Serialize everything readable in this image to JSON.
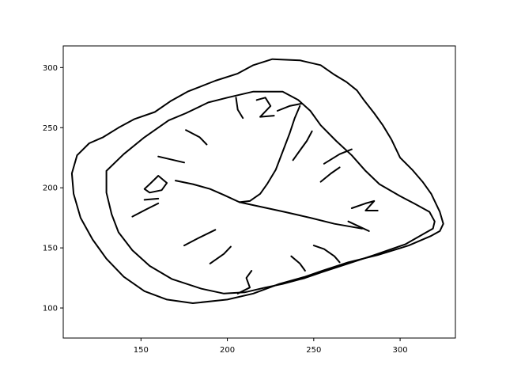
{
  "chart_data": {
    "type": "line",
    "title": "",
    "xlabel": "",
    "ylabel": "",
    "xlim": [
      105,
      332
    ],
    "ylim": [
      75,
      318
    ],
    "x_ticks": [
      150,
      200,
      250,
      300
    ],
    "y_ticks": [
      100,
      150,
      200,
      250,
      300
    ],
    "grid": false,
    "legend": "none",
    "line_color": "#000000",
    "series": [
      {
        "values": [
          [
            113,
            227
          ],
          [
            120,
            237
          ],
          [
            128,
            242
          ],
          [
            137,
            250
          ],
          [
            146,
            257
          ],
          [
            158,
            263
          ],
          [
            167,
            272
          ],
          [
            177,
            280
          ],
          [
            193,
            289
          ],
          [
            206,
            295
          ],
          [
            215,
            302
          ],
          [
            226,
            307
          ],
          [
            242,
            306
          ],
          [
            254,
            302
          ],
          [
            262,
            294
          ],
          [
            269,
            288
          ],
          [
            275,
            281
          ],
          [
            279,
            273
          ],
          [
            285,
            262
          ],
          [
            290,
            252
          ],
          [
            295,
            240
          ],
          [
            300,
            225
          ],
          [
            307,
            215
          ],
          [
            313,
            205
          ],
          [
            318,
            195
          ],
          [
            323,
            180
          ],
          [
            325,
            170
          ],
          [
            323,
            164
          ],
          [
            318,
            160
          ],
          [
            305,
            152
          ],
          [
            287,
            144
          ],
          [
            270,
            138
          ],
          [
            255,
            131
          ],
          [
            245,
            126
          ],
          [
            230,
            120
          ],
          [
            215,
            112
          ],
          [
            200,
            107
          ],
          [
            180,
            104
          ],
          [
            165,
            107
          ],
          [
            152,
            114
          ],
          [
            140,
            126
          ],
          [
            130,
            141
          ],
          [
            122,
            157
          ],
          [
            115,
            175
          ],
          [
            111,
            195
          ],
          [
            110,
            212
          ],
          [
            113,
            227
          ]
        ]
      },
      {
        "values": [
          [
            130,
            214
          ],
          [
            140,
            228
          ],
          [
            152,
            242
          ],
          [
            166,
            256
          ],
          [
            176,
            262
          ],
          [
            189,
            271
          ],
          [
            200,
            275
          ],
          [
            215,
            280
          ],
          [
            232,
            280
          ],
          [
            241,
            273
          ],
          [
            248,
            264
          ],
          [
            254,
            252
          ],
          [
            263,
            239
          ],
          [
            272,
            227
          ],
          [
            280,
            214
          ],
          [
            288,
            203
          ],
          [
            300,
            193
          ],
          [
            308,
            187
          ],
          [
            317,
            180
          ],
          [
            320,
            172
          ],
          [
            319,
            166
          ],
          [
            314,
            162
          ],
          [
            303,
            153
          ],
          [
            285,
            144
          ],
          [
            270,
            137
          ],
          [
            255,
            130
          ],
          [
            245,
            125
          ],
          [
            232,
            120
          ],
          [
            222,
            117
          ],
          [
            210,
            113
          ],
          [
            198,
            112
          ],
          [
            185,
            116
          ],
          [
            168,
            124
          ],
          [
            155,
            135
          ],
          [
            145,
            148
          ],
          [
            137,
            163
          ],
          [
            133,
            178
          ],
          [
            130,
            196
          ],
          [
            130,
            214
          ]
        ]
      },
      {
        "values": [
          [
            155,
            203
          ],
          [
            160,
            210
          ],
          [
            165,
            204
          ],
          [
            162,
            198
          ],
          [
            155,
            196
          ],
          [
            152,
            199
          ],
          [
            155,
            203
          ]
        ]
      },
      {
        "values": [
          [
            152,
            190
          ],
          [
            160,
            191
          ]
        ]
      },
      {
        "values": [
          [
            160,
            226
          ],
          [
            175,
            221
          ]
        ]
      },
      {
        "values": [
          [
            176,
            248
          ],
          [
            184,
            242
          ],
          [
            188,
            236
          ]
        ]
      },
      {
        "values": [
          [
            205,
            275
          ],
          [
            206,
            265
          ],
          [
            209,
            258
          ]
        ]
      },
      {
        "values": [
          [
            217,
            273
          ],
          [
            222,
            275
          ],
          [
            225,
            268
          ],
          [
            219,
            259
          ],
          [
            227,
            260
          ]
        ]
      },
      {
        "values": [
          [
            229,
            264
          ],
          [
            236,
            268
          ],
          [
            243,
            270
          ]
        ]
      },
      {
        "values": [
          [
            249,
            247
          ],
          [
            246,
            239
          ],
          [
            242,
            231
          ],
          [
            238,
            223
          ]
        ]
      },
      {
        "values": [
          [
            256,
            220
          ],
          [
            265,
            228
          ],
          [
            272,
            232
          ]
        ]
      },
      {
        "values": [
          [
            254,
            205
          ],
          [
            260,
            212
          ],
          [
            265,
            217
          ]
        ]
      },
      {
        "values": [
          [
            272,
            183
          ],
          [
            280,
            187
          ],
          [
            285,
            189
          ],
          [
            280,
            181
          ],
          [
            287,
            181
          ]
        ]
      },
      {
        "values": [
          [
            270,
            172
          ],
          [
            276,
            168
          ],
          [
            282,
            164
          ]
        ]
      },
      {
        "values": [
          [
            250,
            152
          ],
          [
            256,
            149
          ],
          [
            262,
            143
          ],
          [
            265,
            138
          ]
        ]
      },
      {
        "values": [
          [
            237,
            143
          ],
          [
            242,
            137
          ],
          [
            245,
            131
          ]
        ]
      },
      {
        "values": [
          [
            206,
            112
          ],
          [
            213,
            117
          ],
          [
            211,
            125
          ],
          [
            214,
            131
          ]
        ]
      },
      {
        "values": [
          [
            190,
            137
          ],
          [
            198,
            145
          ],
          [
            202,
            151
          ]
        ]
      },
      {
        "values": [
          [
            175,
            152
          ],
          [
            183,
            158
          ],
          [
            193,
            165
          ]
        ]
      },
      {
        "values": [
          [
            145,
            176
          ],
          [
            153,
            182
          ],
          [
            160,
            187
          ]
        ]
      },
      {
        "values": [
          [
            207,
            188
          ],
          [
            213,
            189
          ],
          [
            219,
            195
          ],
          [
            223,
            203
          ],
          [
            228,
            215
          ],
          [
            232,
            230
          ],
          [
            236,
            245
          ],
          [
            239,
            258
          ],
          [
            242,
            268
          ]
        ]
      },
      {
        "values": [
          [
            207,
            188
          ],
          [
            198,
            194
          ],
          [
            190,
            199
          ],
          [
            180,
            203
          ],
          [
            170,
            206
          ]
        ]
      },
      {
        "values": [
          [
            207,
            188
          ],
          [
            220,
            184
          ],
          [
            233,
            180
          ],
          [
            248,
            175
          ],
          [
            262,
            170
          ],
          [
            278,
            166
          ]
        ]
      }
    ]
  }
}
